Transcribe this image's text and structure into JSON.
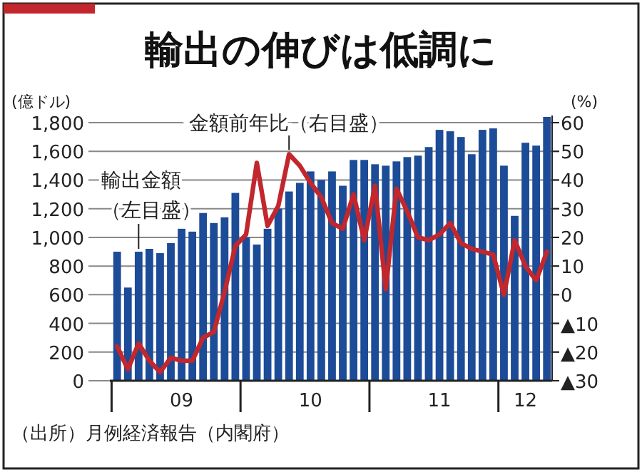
{
  "chart_data": {
    "type": "bar",
    "title": "輸出の伸びは低調に",
    "ylabel": "(億ドル)",
    "y2label": "(%)",
    "x": [
      "2009-01",
      "2009-02",
      "2009-03",
      "2009-04",
      "2009-05",
      "2009-06",
      "2009-07",
      "2009-08",
      "2009-09",
      "2009-10",
      "2009-11",
      "2009-12",
      "2010-01",
      "2010-02",
      "2010-03",
      "2010-04",
      "2010-05",
      "2010-06",
      "2010-07",
      "2010-08",
      "2010-09",
      "2010-10",
      "2010-11",
      "2010-12",
      "2011-01",
      "2011-02",
      "2011-03",
      "2011-04",
      "2011-05",
      "2011-06",
      "2011-07",
      "2011-08",
      "2011-09",
      "2011-10",
      "2011-11",
      "2011-12",
      "2012-01",
      "2012-02",
      "2012-03",
      "2012-04",
      "2012-05"
    ],
    "series": [
      {
        "name": null,
        "color": "#1c4b97",
        "values": [
          900,
          650,
          900,
          920,
          890,
          960,
          1060,
          1040,
          1170,
          1100,
          1140,
          1310,
          1000,
          950,
          1060,
          1200,
          1320,
          1380,
          1460,
          1400,
          1460,
          1360,
          1540,
          1540,
          1510,
          1500,
          1530,
          1560,
          1570,
          1630,
          1750,
          1740,
          1700,
          1580,
          1750,
          1760,
          1500,
          1150,
          1660,
          1640,
          1840
        ]
      },
      {
        "name": null,
        "type": "line",
        "axis": "y2",
        "color": "#c1272d",
        "values": [
          -18,
          -26,
          -17,
          -23,
          -27,
          -22,
          -23,
          -23,
          -15,
          -13,
          1,
          17,
          21,
          46,
          24,
          31,
          49,
          45,
          39,
          34,
          25,
          23,
          35,
          19,
          38,
          2,
          37,
          29,
          20,
          19,
          21,
          25,
          18,
          16,
          15,
          14,
          0,
          19,
          10,
          5,
          15
        ]
      }
    ],
    "xlim": [
      "2008-12-11",
      "2012-05-16"
    ],
    "xticks": [
      {
        "value": "2008-12-16",
        "label": null
      },
      {
        "value": "2009-07-01",
        "label": "09"
      },
      {
        "value": "2009-12-16",
        "label": null
      },
      {
        "value": "2010-07-01",
        "label": "10"
      },
      {
        "value": "2010-12-16",
        "label": null
      },
      {
        "value": "2011-07-01",
        "label": "11"
      },
      {
        "value": "2011-12-16",
        "label": null
      },
      {
        "value": "2012-03-01",
        "label": "12"
      }
    ],
    "ylim": [
      0,
      1850
    ],
    "yticks": [
      0,
      200,
      400,
      600,
      800,
      {
        "value": 1000,
        "label": "1,000"
      },
      {
        "value": 1200,
        "label": "1,200"
      },
      {
        "value": 1400,
        "label": "1,400"
      },
      {
        "value": 1600,
        "label": "1,600"
      },
      {
        "value": 1800,
        "label": "1,800"
      }
    ],
    "y2lim": [
      -30,
      62.5
    ],
    "y2ticks": [
      {
        "value": -30,
        "label": "▲30"
      },
      {
        "value": -20,
        "label": "▲20"
      },
      {
        "value": -10,
        "label": "▲10"
      },
      0,
      10,
      20,
      30,
      40,
      50,
      60
    ],
    "grid": "y",
    "annotations": [
      {
        "text": "輸出金額（左目盛）",
        "x": "2009-03",
        "y": 900
      },
      {
        "text": "金額前年比（右目盛）",
        "x": "2010-05",
        "y": 1580
      },
      "（出所）月例経済報告（内閣府）"
    ]
  }
}
